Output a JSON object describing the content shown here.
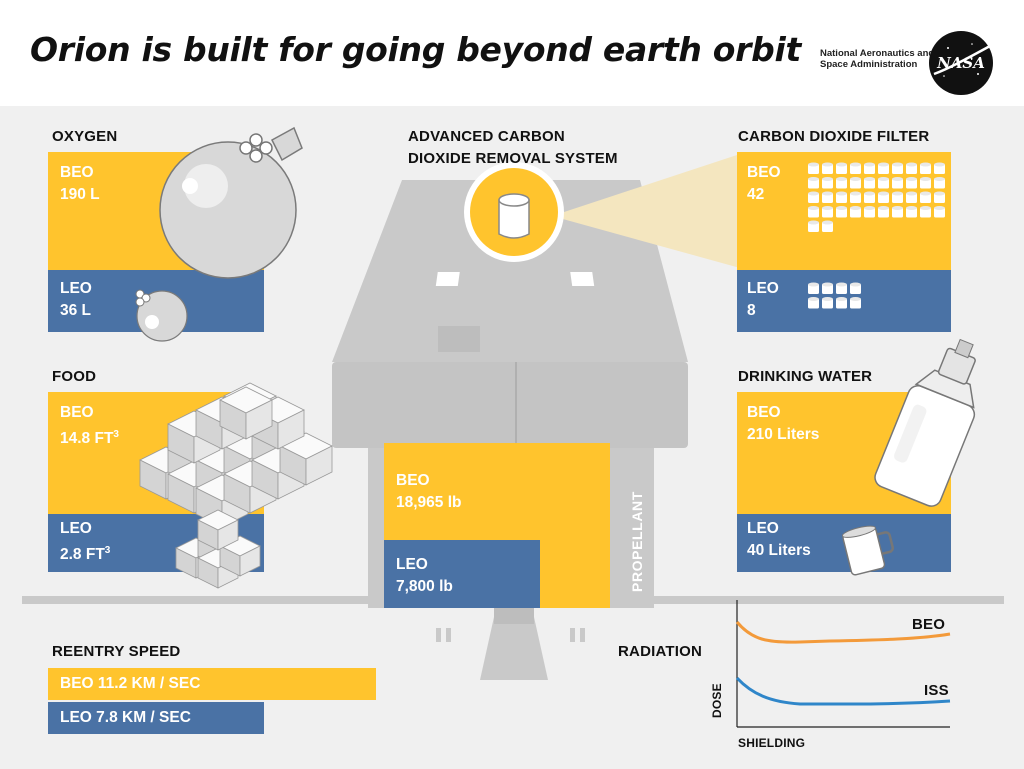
{
  "title": "Orion is built for going beyond earth orbit",
  "agency": {
    "line1": "National Aeronautics and",
    "line2": "Space Administration",
    "logo_text": "NASA"
  },
  "colors": {
    "beo": "#ffc42d",
    "leo": "#4a72a5",
    "gray": "#c9c9c9",
    "bg": "#f0f0f0",
    "beo_line": "#f39a3a",
    "iss_line": "#2f86c9"
  },
  "oxygen": {
    "label": "OXYGEN",
    "beo_tag": "BEO",
    "beo_value": "190 L",
    "leo_tag": "LEO",
    "leo_value": "36 L"
  },
  "food": {
    "label": "FOOD",
    "beo_tag": "BEO",
    "beo_value": "14.8 FT",
    "beo_exp": "3",
    "leo_tag": "LEO",
    "leo_value": "2.8 FT",
    "leo_exp": "3"
  },
  "co2_system": {
    "line1": "ADVANCED CARBON",
    "line2": "DIOXIDE REMOVAL SYSTEM"
  },
  "co2_filter": {
    "label": "CARBON DIOXIDE FILTER",
    "beo_tag": "BEO",
    "beo_value": "42",
    "beo_count": 42,
    "leo_tag": "LEO",
    "leo_value": "8",
    "leo_count": 8
  },
  "water": {
    "label": "DRINKING WATER",
    "beo_tag": "BEO",
    "beo_value": "210 Liters",
    "leo_tag": "LEO",
    "leo_value": "40 Liters"
  },
  "propellant": {
    "label": "PROPELLANT",
    "beo_tag": "BEO",
    "beo_value": "18,965 lb",
    "leo_tag": "LEO",
    "leo_value": "7,800 lb"
  },
  "reentry": {
    "label": "REENTRY SPEED",
    "beo_text": "BEO 11.2 KM / SEC",
    "leo_text": "LEO 7.8 KM / SEC"
  },
  "radiation": {
    "label": "RADIATION",
    "ylabel": "DOSE",
    "xlabel": "SHIELDING",
    "series": [
      {
        "name": "BEO"
      },
      {
        "name": "ISS"
      }
    ]
  }
}
